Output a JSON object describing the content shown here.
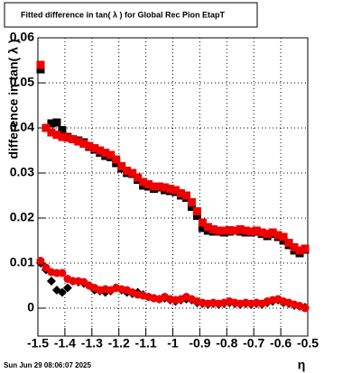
{
  "chart_data": {
    "type": "scatter",
    "title": "Fitted difference in tan( λ ) for Global Rec Pion EtapT",
    "x_label": "η",
    "y_label": "difference in tan( λ )",
    "timestamp": "Sun Jun 29 08:06:07 2025",
    "xlim": [
      -1.5,
      -0.5
    ],
    "ylim": [
      -0.0062,
      0.06
    ],
    "xticks": [
      -1.5,
      -1.4,
      -1.3,
      -1.2,
      -1.1,
      -1,
      -0.9,
      -0.8,
      -0.7,
      -0.6,
      -0.5
    ],
    "yticks": [
      0,
      0.01,
      0.02,
      0.03,
      0.04,
      0.05,
      0.06
    ],
    "grid": true,
    "x": [
      -1.49,
      -1.47,
      -1.45,
      -1.43,
      -1.41,
      -1.39,
      -1.37,
      -1.35,
      -1.33,
      -1.31,
      -1.29,
      -1.27,
      -1.25,
      -1.23,
      -1.21,
      -1.19,
      -1.17,
      -1.15,
      -1.13,
      -1.11,
      -1.09,
      -1.07,
      -1.05,
      -1.03,
      -1.01,
      -0.99,
      -0.97,
      -0.95,
      -0.93,
      -0.91,
      -0.89,
      -0.87,
      -0.85,
      -0.83,
      -0.81,
      -0.79,
      -0.77,
      -0.75,
      -0.73,
      -0.71,
      -0.69,
      -0.67,
      -0.65,
      -0.63,
      -0.61,
      -0.59,
      -0.57,
      -0.55,
      -0.53,
      -0.51
    ],
    "series": [
      {
        "color": "#000000",
        "marker": "square",
        "values": [
          0.053,
          0.04,
          0.041,
          0.0412,
          0.0395,
          0.038,
          0.0375,
          0.0372,
          0.0368,
          0.0358,
          0.0352,
          0.0345,
          0.0338,
          0.0335,
          0.0322,
          0.031,
          0.03,
          0.0298,
          0.0285,
          0.0272,
          0.027,
          0.0265,
          0.0268,
          0.0262,
          0.026,
          0.0258,
          0.025,
          0.0245,
          0.0225,
          0.0205,
          0.0178,
          0.0172,
          0.017,
          0.017,
          0.0168,
          0.017,
          0.0172,
          0.017,
          0.0168,
          0.0168,
          0.017,
          0.0165,
          0.016,
          0.0165,
          0.0158,
          0.015,
          0.014,
          0.0128,
          0.0122,
          0.013
        ]
      },
      {
        "color": "#ee0000",
        "marker": "square",
        "values": [
          0.054,
          0.04,
          0.039,
          0.0385,
          0.038,
          0.0378,
          0.0375,
          0.037,
          0.0365,
          0.036,
          0.0355,
          0.035,
          0.0345,
          0.034,
          0.033,
          0.0315,
          0.0305,
          0.03,
          0.029,
          0.028,
          0.0275,
          0.027,
          0.027,
          0.0268,
          0.0265,
          0.0262,
          0.0255,
          0.025,
          0.0235,
          0.0215,
          0.019,
          0.018,
          0.0175,
          0.0172,
          0.0172,
          0.0173,
          0.0172,
          0.0175,
          0.0172,
          0.017,
          0.0172,
          0.0168,
          0.0165,
          0.0168,
          0.0162,
          0.0158,
          0.0145,
          0.0135,
          0.0128,
          0.0132
        ]
      },
      {
        "color": "#000000",
        "marker": "diamond",
        "values": [
          0.01,
          0.0085,
          0.006,
          0.004,
          0.0035,
          0.0045,
          0.006,
          0.0058,
          0.0055,
          0.005,
          0.004,
          0.0038,
          0.0035,
          0.0038,
          0.0045,
          0.004,
          0.0035,
          0.0032,
          0.0035,
          0.003,
          0.0025,
          0.0022,
          0.002,
          0.0022,
          0.0018,
          0.0015,
          0.0018,
          0.002,
          0.0018,
          0.0012,
          0.001,
          0.0008,
          0.001,
          0.0008,
          0.001,
          0.0012,
          0.001,
          0.0008,
          0.001,
          0.0008,
          0.001,
          0.0008,
          0.0012,
          0.0015,
          0.0018,
          0.0012,
          0.001,
          0.0006,
          0.0004,
          0.0002
        ]
      },
      {
        "color": "#ee0000",
        "marker": "circle",
        "values": [
          0.0105,
          0.009,
          0.008,
          0.0078,
          0.0078,
          0.0065,
          0.006,
          0.006,
          0.0058,
          0.005,
          0.0045,
          0.004,
          0.0042,
          0.004,
          0.0045,
          0.0042,
          0.004,
          0.0035,
          0.003,
          0.0028,
          0.0025,
          0.0022,
          0.002,
          0.0025,
          0.002,
          0.0018,
          0.002,
          0.0025,
          0.002,
          0.0015,
          0.0012,
          0.001,
          0.0012,
          0.001,
          0.0012,
          0.0015,
          0.0012,
          0.001,
          0.0012,
          0.001,
          0.0012,
          0.001,
          0.0015,
          0.0018,
          0.002,
          0.0015,
          0.0012,
          0.0008,
          0.0005,
          0
        ]
      }
    ]
  }
}
